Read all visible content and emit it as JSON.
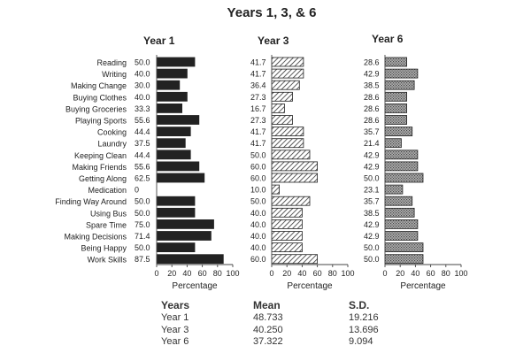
{
  "chart_data": {
    "type": "bar",
    "orientation": "horizontal",
    "title": "Years 1, 3, & 6",
    "categories": [
      "Reading",
      "Writing",
      "Making Change",
      "Buying Clothes",
      "Buying Groceries",
      "Playing Sports",
      "Cooking",
      "Laundry",
      "Keeping Clean",
      "Making Friends",
      "Getting Along",
      "Medication",
      "Finding Way Around",
      "Using Bus",
      "Spare Time",
      "Making Decisions",
      "Being Happy",
      "Work Skills"
    ],
    "panels": [
      {
        "name": "Year 1",
        "fill": "#222222",
        "values": [
          50.0,
          40.0,
          30.0,
          40.0,
          33.3,
          55.6,
          44.4,
          37.5,
          44.4,
          55.6,
          62.5,
          0,
          50.0,
          50.0,
          75.0,
          71.4,
          50.0,
          87.5
        ]
      },
      {
        "name": "Year 3",
        "fill": "hatched",
        "values": [
          41.7,
          41.7,
          36.4,
          27.3,
          16.7,
          27.3,
          41.7,
          41.7,
          50.0,
          60.0,
          60.0,
          10.0,
          50.0,
          40.0,
          40.0,
          40.0,
          40.0,
          60.0
        ]
      },
      {
        "name": "Year 6",
        "fill": "dotted-gray",
        "values": [
          28.6,
          42.9,
          38.5,
          28.6,
          28.6,
          28.6,
          35.7,
          21.4,
          42.9,
          42.9,
          50.0,
          23.1,
          35.7,
          38.5,
          42.9,
          42.9,
          50.0,
          50.0
        ]
      }
    ],
    "value_labels": {
      "y1": [
        "50.0",
        "40.0",
        "30.0",
        "40.0",
        "33.3",
        "55.6",
        "44.4",
        "37.5",
        "44.4",
        "55.6",
        "62.5",
        "0",
        "50.0",
        "50.0",
        "75.0",
        "71.4",
        "50.0",
        "87.5"
      ],
      "y3": [
        "41.7",
        "41.7",
        "36.4",
        "27.3",
        "16.7",
        "27.3",
        "41.7",
        "41.7",
        "50.0",
        "60.0",
        "60.0",
        "10.0",
        "50.0",
        "40.0",
        "40.0",
        "40.0",
        "40.0",
        "60.0"
      ],
      "y6": [
        "28.6",
        "42.9",
        "38.5",
        "28.6",
        "28.6",
        "28.6",
        "35.7",
        "21.4",
        "42.9",
        "42.9",
        "50.0",
        "23.1",
        "35.7",
        "38.5",
        "42.9",
        "42.9",
        "50.0",
        "50.0"
      ]
    },
    "xlabel": "Percentage",
    "xlim": [
      0,
      100
    ],
    "xticks": [
      "0",
      "20",
      "40",
      "60",
      "80",
      "100"
    ],
    "grid": false
  },
  "stats": {
    "headers": [
      "Years",
      "Mean",
      "S.D."
    ],
    "rows": [
      [
        "Year 1",
        "48.733",
        "19.216"
      ],
      [
        "Year 3",
        "40.250",
        "13.696"
      ],
      [
        "Year 6",
        "37.322",
        "9.094"
      ]
    ]
  }
}
